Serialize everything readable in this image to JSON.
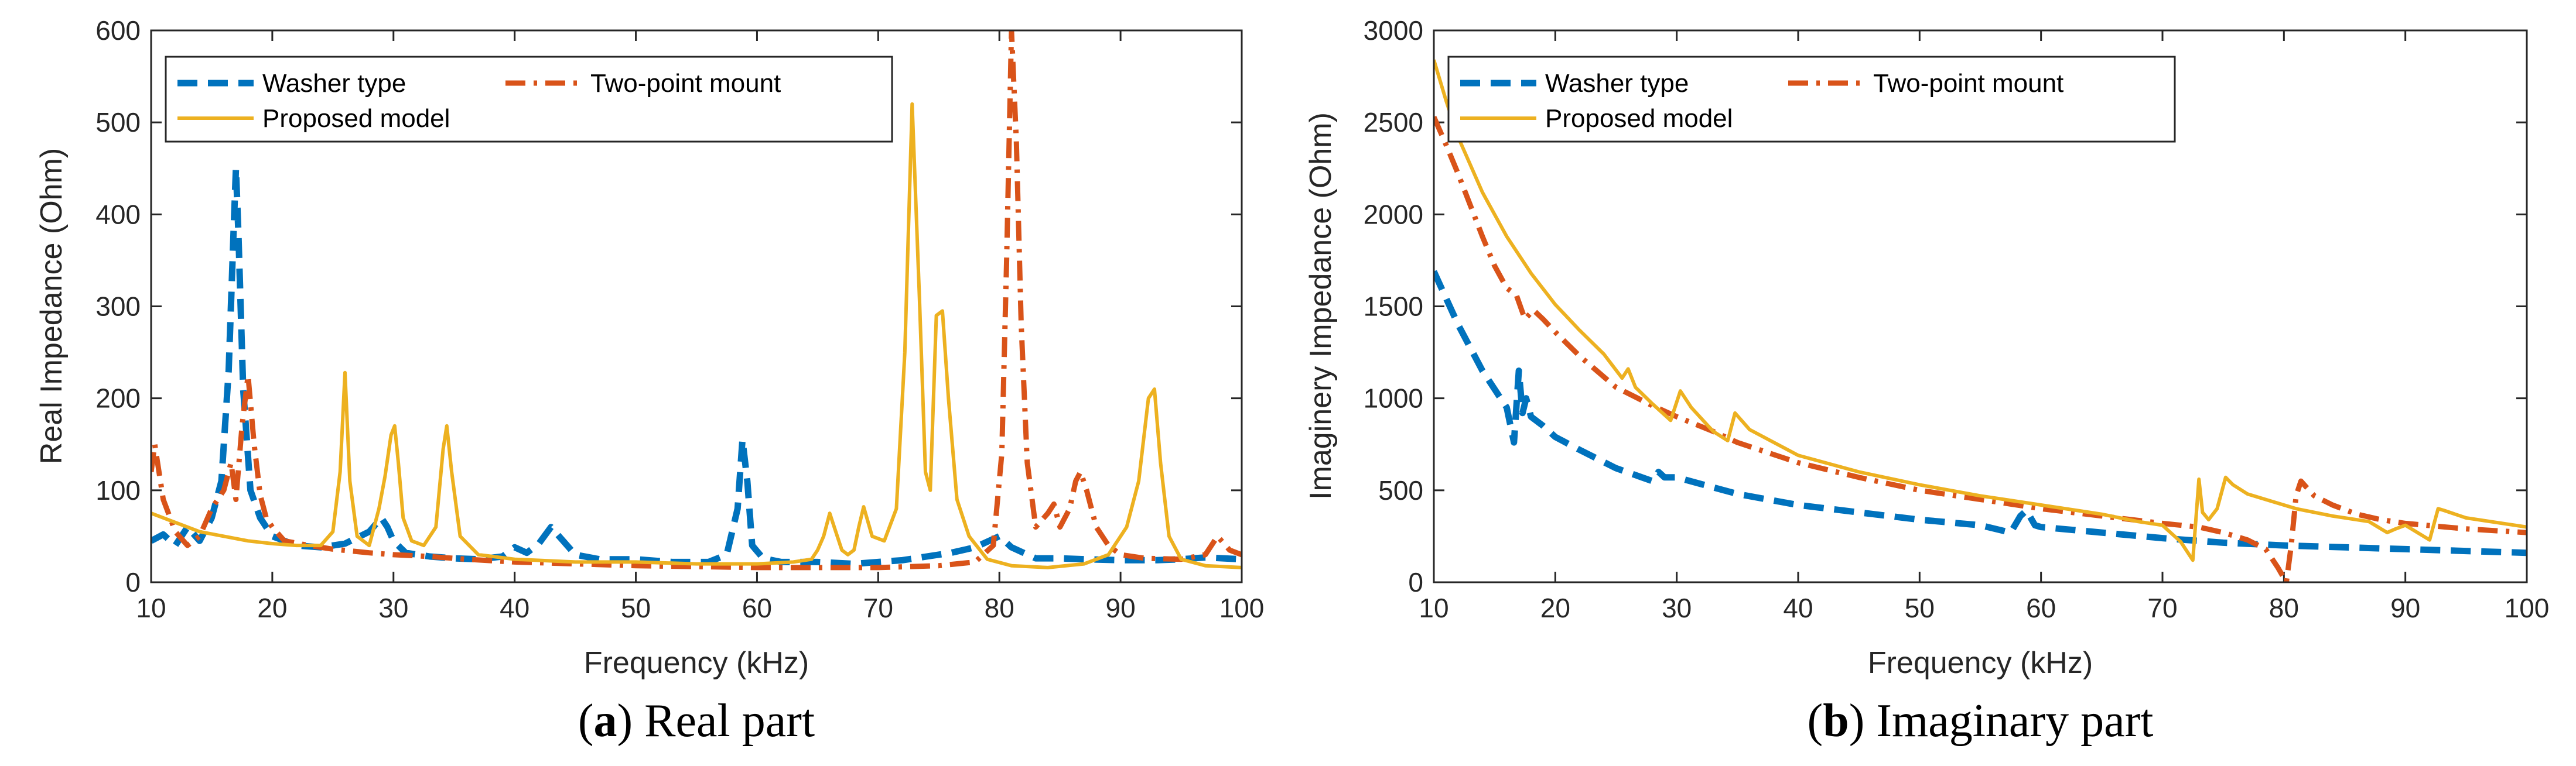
{
  "chart_data": [
    {
      "type": "line",
      "caption_letter": "a",
      "caption_text": "Real part",
      "xlabel": "Frequency (kHz)",
      "ylabel": "Real Impedance (Ohm)",
      "xlim": [
        10,
        100
      ],
      "ylim": [
        0,
        600
      ],
      "xticks": [
        10,
        20,
        30,
        40,
        50,
        60,
        70,
        80,
        90,
        100
      ],
      "yticks": [
        0,
        100,
        200,
        300,
        400,
        500,
        600
      ],
      "legend_position": "top-left",
      "series": [
        {
          "name": "Washer type",
          "color": "#0072BD",
          "dash": "dashed",
          "x": [
            10,
            11,
            12,
            13,
            14,
            15,
            15.8,
            16.4,
            16.8,
            17.0,
            17.2,
            17.6,
            18.2,
            19,
            20,
            22,
            24,
            26,
            28,
            29,
            29.5,
            30,
            31,
            33,
            35,
            37,
            39,
            40,
            41,
            42,
            43,
            44,
            45,
            47,
            50,
            53,
            56,
            57.5,
            58.4,
            58.8,
            59.2,
            59.6,
            60.5,
            62,
            65,
            68,
            70,
            72,
            74,
            76,
            78,
            79,
            80,
            81,
            83,
            85,
            87,
            90,
            93,
            95,
            97,
            100
          ],
          "values": [
            45,
            52,
            40,
            60,
            45,
            70,
            110,
            230,
            380,
            450,
            380,
            210,
            100,
            70,
            50,
            40,
            38,
            42,
            55,
            70,
            60,
            45,
            32,
            28,
            26,
            25,
            28,
            38,
            32,
            42,
            60,
            45,
            30,
            25,
            25,
            22,
            22,
            30,
            80,
            155,
            110,
            40,
            26,
            22,
            22,
            20,
            22,
            24,
            28,
            32,
            38,
            44,
            50,
            38,
            26,
            26,
            25,
            24,
            24,
            25,
            27,
            25
          ]
        },
        {
          "name": "Two-point mount",
          "color": "#D95319",
          "dash": "dashdot",
          "x": [
            10,
            10.3,
            11,
            12,
            13,
            14,
            15,
            16,
            16.6,
            17,
            17.5,
            18,
            18.5,
            19,
            19.5,
            20,
            21,
            23,
            25,
            28,
            30,
            33,
            36,
            40,
            45,
            50,
            55,
            60,
            65,
            70,
            75,
            78,
            79.5,
            80.2,
            80.6,
            81,
            81.4,
            81.8,
            82.3,
            83,
            84,
            84.5,
            85,
            85.8,
            86.3,
            86.7,
            87.2,
            88,
            89,
            90,
            92,
            95,
            97,
            98,
            99,
            100
          ],
          "values": [
            120,
            150,
            90,
            55,
            40,
            50,
            80,
            100,
            130,
            90,
            170,
            225,
            150,
            95,
            70,
            60,
            45,
            40,
            36,
            32,
            30,
            28,
            25,
            22,
            20,
            18,
            17,
            16,
            16,
            16,
            18,
            22,
            40,
            140,
            350,
            600,
            480,
            280,
            130,
            60,
            75,
            85,
            60,
            80,
            110,
            120,
            100,
            60,
            40,
            30,
            26,
            25,
            30,
            50,
            35,
            30
          ]
        },
        {
          "name": "Proposed model",
          "color": "#EDB120",
          "dash": "solid",
          "x": [
            10,
            12,
            14,
            16,
            18,
            20,
            22,
            24,
            25,
            25.6,
            26,
            26.4,
            27,
            28,
            28.8,
            29.3,
            29.8,
            30.1,
            30.4,
            30.8,
            31.5,
            32.5,
            33.5,
            34.1,
            34.4,
            34.8,
            35.5,
            37,
            40,
            45,
            50,
            55,
            60,
            63,
            64.5,
            65,
            65.5,
            66,
            66.5,
            67,
            67.5,
            68,
            68.4,
            68.8,
            69.5,
            70.5,
            71.5,
            72.2,
            72.8,
            73.4,
            73.9,
            74.3,
            74.8,
            75.3,
            75.8,
            76.5,
            77.5,
            79,
            81,
            84,
            87,
            89,
            90.5,
            91.5,
            92.3,
            92.8,
            93.3,
            94,
            95,
            97,
            100
          ],
          "values": [
            75,
            65,
            55,
            50,
            45,
            42,
            40,
            40,
            55,
            120,
            228,
            110,
            50,
            40,
            80,
            115,
            160,
            170,
            130,
            70,
            45,
            40,
            60,
            145,
            170,
            120,
            50,
            30,
            25,
            22,
            22,
            20,
            20,
            22,
            25,
            35,
            50,
            75,
            55,
            35,
            30,
            35,
            60,
            82,
            50,
            45,
            80,
            250,
            520,
            310,
            120,
            100,
            290,
            295,
            200,
            90,
            50,
            25,
            18,
            16,
            20,
            30,
            60,
            110,
            200,
            210,
            130,
            50,
            25,
            18,
            16
          ]
        }
      ]
    },
    {
      "type": "line",
      "caption_letter": "b",
      "caption_text": "Imaginary part",
      "xlabel": "Frequency (kHz)",
      "ylabel": "Imaginery Impedance (Ohm)",
      "xlim": [
        10,
        100
      ],
      "ylim": [
        0,
        3000
      ],
      "xticks": [
        10,
        20,
        30,
        40,
        50,
        60,
        70,
        80,
        90,
        100
      ],
      "yticks": [
        0,
        500,
        1000,
        1500,
        2000,
        2500,
        3000
      ],
      "legend_position": "top-left",
      "series": [
        {
          "name": "Washer type",
          "color": "#0072BD",
          "dash": "dashed",
          "x": [
            10,
            12,
            14,
            16,
            16.6,
            17,
            17.3,
            17.6,
            18,
            19,
            20,
            22,
            25,
            28,
            28.5,
            29,
            30,
            35,
            40,
            45,
            50,
            55,
            57.5,
            58.3,
            58.8,
            59.5,
            60,
            65,
            70,
            75,
            80,
            85,
            90,
            95,
            100
          ],
          "values": [
            1690,
            1400,
            1150,
            950,
            760,
            1150,
            920,
            1000,
            900,
            850,
            790,
            720,
            620,
            550,
            600,
            570,
            570,
            480,
            420,
            380,
            340,
            310,
            270,
            360,
            390,
            310,
            300,
            270,
            240,
            215,
            200,
            190,
            180,
            170,
            160
          ]
        },
        {
          "name": "Two-point mount",
          "color": "#D95319",
          "dash": "dashdot",
          "x": [
            10,
            11,
            12,
            13,
            14,
            15,
            16,
            16.8,
            17.5,
            18.2,
            19,
            20,
            22,
            25,
            28,
            30,
            33,
            35,
            40,
            45,
            50,
            55,
            60,
            65,
            70,
            73,
            75,
            77,
            78.5,
            79.5,
            80.2,
            80.6,
            81,
            81.4,
            81.8,
            82.5,
            84,
            86,
            88,
            90,
            95,
            100
          ],
          "values": [
            2530,
            2380,
            2220,
            2050,
            1880,
            1720,
            1600,
            1560,
            1430,
            1480,
            1430,
            1360,
            1230,
            1060,
            960,
            900,
            820,
            760,
            650,
            570,
            500,
            450,
            400,
            360,
            320,
            300,
            270,
            230,
            180,
            80,
            0,
            200,
            470,
            550,
            520,
            470,
            420,
            370,
            340,
            320,
            290,
            270
          ]
        },
        {
          "name": "Proposed model",
          "color": "#EDB120",
          "dash": "solid",
          "x": [
            10,
            11,
            12,
            14,
            16,
            18,
            20,
            22,
            24,
            25.5,
            26,
            26.6,
            28,
            29.5,
            30.3,
            31.2,
            33,
            34.2,
            34.8,
            36,
            40,
            45,
            50,
            55,
            60,
            65,
            68,
            70,
            71.5,
            72.5,
            73,
            73.3,
            73.8,
            74.5,
            75.2,
            75.8,
            77,
            79,
            81,
            84,
            87,
            88.5,
            89.2,
            90,
            92,
            92.7,
            93.2,
            95,
            100
          ],
          "values": [
            2840,
            2620,
            2420,
            2120,
            1880,
            1680,
            1510,
            1370,
            1240,
            1110,
            1160,
            1060,
            970,
            880,
            1040,
            950,
            820,
            770,
            920,
            830,
            690,
            600,
            530,
            470,
            420,
            370,
            330,
            310,
            220,
            120,
            560,
            380,
            340,
            400,
            570,
            530,
            480,
            440,
            400,
            360,
            330,
            270,
            290,
            310,
            230,
            400,
            390,
            350,
            300
          ]
        }
      ]
    }
  ]
}
